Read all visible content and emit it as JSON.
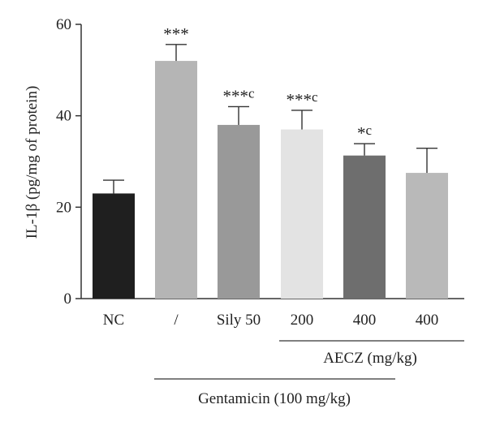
{
  "chart_data": {
    "type": "bar",
    "ylabel": "IL-1β (pg/mg of protein)",
    "ylim": [
      0,
      60
    ],
    "yticks": [
      0,
      20,
      40,
      60
    ],
    "categories": [
      "NC",
      "/",
      "Sily 50",
      "200",
      "400",
      "400"
    ],
    "values": [
      23.0,
      52.0,
      38.0,
      37.0,
      31.3,
      27.5
    ],
    "errors": [
      2.9,
      3.6,
      4.0,
      4.2,
      2.6,
      5.4
    ],
    "colors": [
      "#1f1f1f",
      "#b5b5b5",
      "#999999",
      "#e3e3e3",
      "#6e6e6e",
      "#b9b9b9"
    ],
    "significance": [
      {
        "stars": "",
        "letter": ""
      },
      {
        "stars": "***",
        "letter": ""
      },
      {
        "stars": "***",
        "letter": "c"
      },
      {
        "stars": "***",
        "letter": "c"
      },
      {
        "stars": "*",
        "letter": "c"
      },
      {
        "stars": "",
        "letter": ""
      }
    ],
    "group_labels": {
      "aecz": "AECZ (mg/kg)",
      "gentamicin": "Gentamicin (100 mg/kg)"
    },
    "grid": false,
    "legend": "none"
  }
}
